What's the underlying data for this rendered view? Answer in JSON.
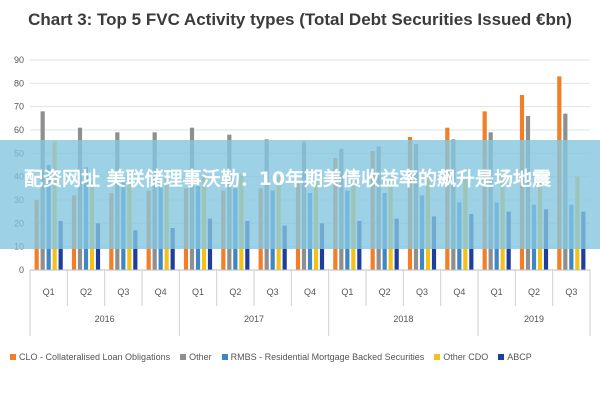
{
  "chart_data": {
    "type": "bar",
    "title": "Chart 3: Top 5 FVC Activity types (Total Debt Securities Issued €bn)",
    "quarters": [
      "Q1",
      "Q2",
      "Q3",
      "Q4",
      "Q1",
      "Q2",
      "Q3",
      "Q4",
      "Q1",
      "Q2",
      "Q3",
      "Q4",
      "Q1",
      "Q2",
      "Q3"
    ],
    "years": [
      {
        "label": "2016",
        "span": 4
      },
      {
        "label": "2017",
        "span": 4
      },
      {
        "label": "2018",
        "span": 4
      },
      {
        "label": "2019",
        "span": 3
      }
    ],
    "yticks": [
      0,
      10,
      20,
      30,
      40,
      50,
      60,
      70,
      80,
      90
    ],
    "ylim": [
      0,
      90
    ],
    "series": [
      {
        "name": "CLO - Collateralised Loan Obligations",
        "color": "#f07f28",
        "values": [
          30,
          32,
          33,
          34,
          35,
          34,
          35,
          37,
          48,
          51,
          57,
          61,
          68,
          75,
          83
        ]
      },
      {
        "name": "Other",
        "color": "#8f8f8f",
        "values": [
          68,
          61,
          59,
          59,
          61,
          58,
          56,
          55,
          52,
          53,
          54,
          56,
          59,
          66,
          67
        ]
      },
      {
        "name": "RMBS - Residential Mortgage Backed Securities",
        "color": "#3f86c4",
        "values": [
          45,
          44,
          38,
          37,
          36,
          35,
          34,
          33,
          34,
          33,
          32,
          29,
          29,
          28,
          28
        ]
      },
      {
        "name": "Other CDO",
        "color": "#f4c11a",
        "values": [
          55,
          38,
          39,
          40,
          41,
          41,
          40,
          39,
          40,
          40,
          40,
          40,
          41,
          41,
          40
        ]
      },
      {
        "name": "ABCP",
        "color": "#1e3f9c",
        "values": [
          21,
          20,
          17,
          18,
          22,
          21,
          19,
          20,
          21,
          22,
          23,
          24,
          25,
          26,
          25
        ]
      }
    ]
  },
  "overlay": {
    "text": "配资网址 美联储理事沃勒：10年期美债收益率的飙升是场地震"
  }
}
